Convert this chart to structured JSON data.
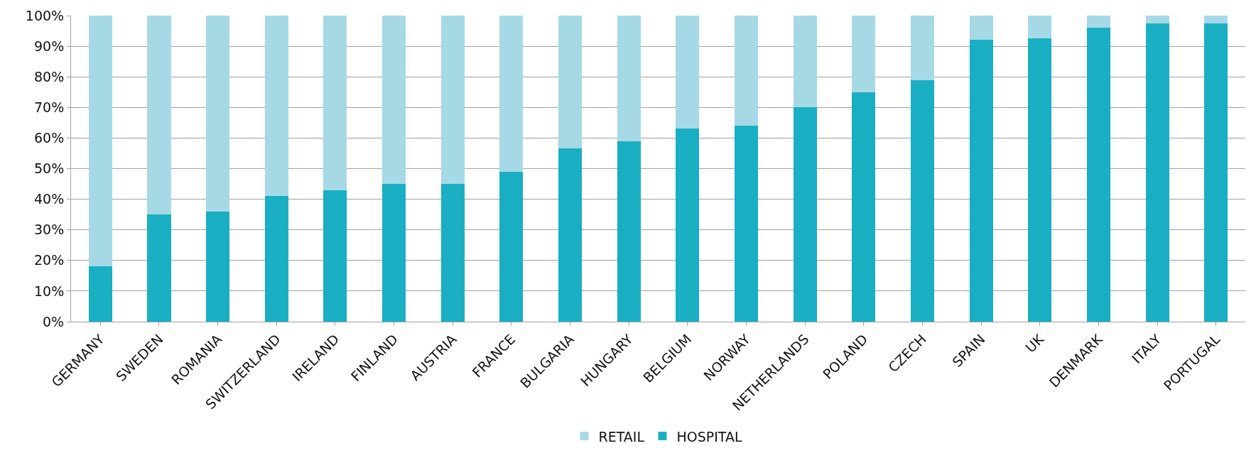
{
  "chart_data": {
    "type": "bar",
    "stacked": true,
    "categories": [
      "GERMANY",
      "SWEDEN",
      "ROMANIA",
      "SWITZERLAND",
      "IRELAND",
      "FINLAND",
      "AUSTRIA",
      "FRANCE",
      "BULGARIA",
      "HUNGARY",
      "BELGIUM",
      "NORWAY",
      "NETHERLANDS",
      "POLAND",
      "CZECH",
      "SPAIN",
      "UK",
      "DENMARK",
      "ITALY",
      "PORTUGAL"
    ],
    "series": [
      {
        "name": "HOSPITAL",
        "color": "#1aaec3",
        "values": [
          18,
          35,
          36,
          41,
          43,
          45,
          45,
          49,
          56.5,
          59,
          63,
          64,
          70,
          75,
          79,
          92,
          92.5,
          96,
          97.5,
          97.5
        ]
      },
      {
        "name": "RETAIL",
        "color": "#a6d9e6",
        "values": [
          82,
          65,
          64,
          59,
          57,
          55,
          55,
          51,
          43.5,
          41,
          37,
          36,
          30,
          25,
          21,
          8,
          7.5,
          4,
          2.5,
          2.5
        ]
      }
    ],
    "ylim": [
      0,
      100
    ],
    "yticks": [
      {
        "value": 0,
        "label": "0%"
      },
      {
        "value": 10,
        "label": "10%"
      },
      {
        "value": 20,
        "label": "20%"
      },
      {
        "value": 30,
        "label": "30%"
      },
      {
        "value": 40,
        "label": "40%"
      },
      {
        "value": 50,
        "label": "50%"
      },
      {
        "value": 60,
        "label": "60%"
      },
      {
        "value": 70,
        "label": "70%"
      },
      {
        "value": 80,
        "label": "80%"
      },
      {
        "value": 90,
        "label": "90%"
      },
      {
        "value": 100,
        "label": "100%"
      }
    ],
    "grid": "y",
    "legend": "bottom"
  }
}
